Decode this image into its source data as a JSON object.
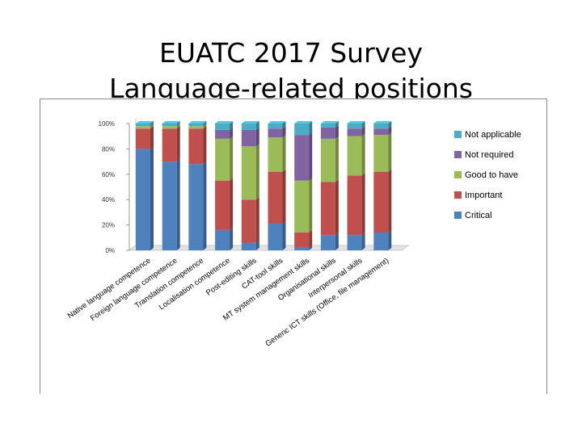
{
  "slide": {
    "title_line1": "EUATC 2017 Survey",
    "title_line2": "Language-related positions"
  },
  "chart_data": {
    "type": "bar",
    "stacked": true,
    "percent": true,
    "title": "",
    "xlabel": "",
    "ylabel": "",
    "ylim": [
      0,
      100
    ],
    "yticks": [
      "0%",
      "20%",
      "40%",
      "60%",
      "80%",
      "100%"
    ],
    "grid": false,
    "legend_position": "right",
    "categories": [
      "Native language competence",
      "Foreign language competence",
      "Translation competence",
      "Localisation competence",
      "Post-editing skills",
      "CAT-tool skills",
      "MT system management skills",
      "Organisational skills",
      "Interpersonal skills",
      "Generic ICT skills (Office, file management)"
    ],
    "series": [
      {
        "name": "Critical",
        "color": "#4f81bd",
        "values": [
          80,
          70,
          68,
          16,
          6,
          21,
          2,
          12,
          12,
          14
        ]
      },
      {
        "name": "Important",
        "color": "#c0504d",
        "values": [
          16,
          26,
          28,
          39,
          34,
          41,
          12,
          42,
          47,
          48
        ]
      },
      {
        "name": "Good to have",
        "color": "#9bbb59",
        "values": [
          2,
          2,
          2,
          33,
          42,
          27,
          41,
          34,
          31,
          29
        ]
      },
      {
        "name": "Not required",
        "color": "#8064a2",
        "values": [
          0,
          0,
          0,
          7,
          13,
          7,
          36,
          9,
          6,
          5
        ]
      },
      {
        "name": "Not applicable",
        "color": "#4bacc6",
        "values": [
          2,
          2,
          2,
          5,
          5,
          4,
          9,
          3,
          4,
          4
        ]
      }
    ]
  }
}
